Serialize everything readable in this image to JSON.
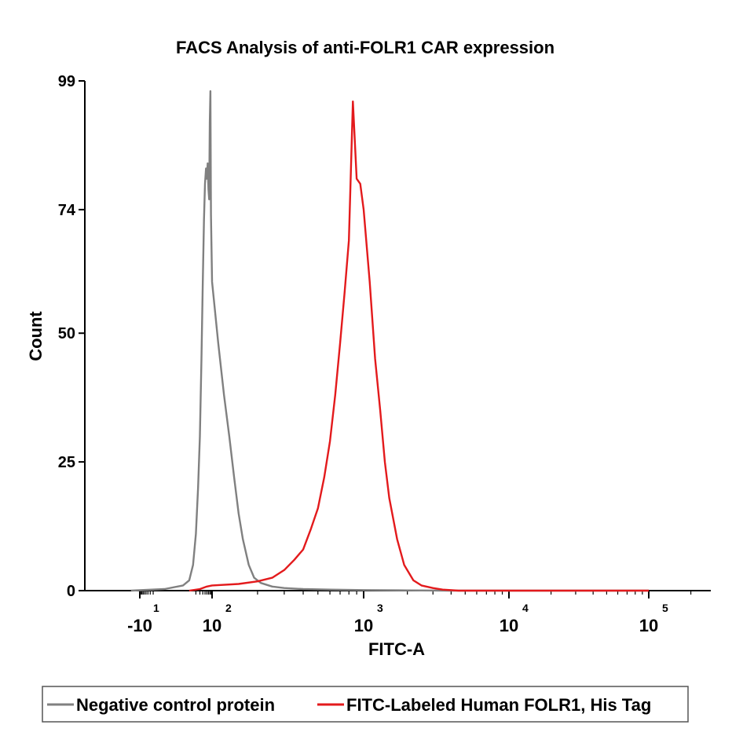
{
  "chart_data": {
    "type": "line",
    "title": "FACS Analysis of anti-FOLR1 CAR expression",
    "xlabel": "FITC-A",
    "ylabel": "Count",
    "xscale": "log (biexponential)",
    "ylim": [
      0,
      99
    ],
    "yticks": [
      {
        "value": 0,
        "label": "0"
      },
      {
        "value": 25,
        "label": "25"
      },
      {
        "value": 50,
        "label": "50"
      },
      {
        "value": 74,
        "label": "74"
      },
      {
        "value": 99,
        "label": "99"
      }
    ],
    "xticks": [
      {
        "value": 10,
        "sign": "-",
        "base": "10",
        "exp": "1"
      },
      {
        "value": 100,
        "sign": "",
        "base": "10",
        "exp": "2"
      },
      {
        "value": 1000,
        "sign": "",
        "base": "10",
        "exp": "3"
      },
      {
        "value": 10000,
        "sign": "",
        "base": "10",
        "exp": "4"
      },
      {
        "value": 100000,
        "sign": "",
        "base": "10",
        "exp": "5"
      }
    ],
    "legend_position": "bottom",
    "grid": false,
    "series": [
      {
        "name": "Negative control protein",
        "color": "#808080",
        "points": [
          [
            -25,
            0
          ],
          [
            0,
            0.3
          ],
          [
            5,
            1
          ],
          [
            10,
            2
          ],
          [
            15,
            5
          ],
          [
            20,
            11
          ],
          [
            25,
            20
          ],
          [
            30,
            30
          ],
          [
            35,
            45
          ],
          [
            40,
            60
          ],
          [
            45,
            72
          ],
          [
            50,
            79
          ],
          [
            55,
            82
          ],
          [
            60,
            80
          ],
          [
            65,
            83
          ],
          [
            70,
            78
          ],
          [
            75,
            76
          ],
          [
            80,
            91
          ],
          [
            85,
            97
          ],
          [
            90,
            73
          ],
          [
            100,
            60
          ],
          [
            110,
            48
          ],
          [
            120,
            38
          ],
          [
            130,
            30
          ],
          [
            140,
            22
          ],
          [
            150,
            15
          ],
          [
            160,
            10
          ],
          [
            175,
            5
          ],
          [
            190,
            2.5
          ],
          [
            210,
            1.5
          ],
          [
            250,
            0.8
          ],
          [
            300,
            0.5
          ],
          [
            400,
            0.3
          ],
          [
            600,
            0.2
          ],
          [
            1000,
            0.1
          ],
          [
            2000,
            0.05
          ],
          [
            4000,
            0
          ],
          [
            100000,
            0
          ]
        ]
      },
      {
        "name": "FITC-Labeled Human FOLR1, His Tag",
        "color": "#e31a1c",
        "points": [
          [
            10,
            0
          ],
          [
            30,
            0.3
          ],
          [
            60,
            0.8
          ],
          [
            100,
            1
          ],
          [
            150,
            1.3
          ],
          [
            200,
            1.8
          ],
          [
            250,
            2.5
          ],
          [
            300,
            4
          ],
          [
            350,
            6
          ],
          [
            400,
            8
          ],
          [
            450,
            12
          ],
          [
            500,
            16
          ],
          [
            550,
            22
          ],
          [
            600,
            29
          ],
          [
            650,
            38
          ],
          [
            700,
            48
          ],
          [
            750,
            58
          ],
          [
            800,
            68
          ],
          [
            850,
            95
          ],
          [
            900,
            80
          ],
          [
            950,
            79
          ],
          [
            1000,
            74
          ],
          [
            1100,
            60
          ],
          [
            1200,
            45
          ],
          [
            1300,
            35
          ],
          [
            1400,
            25
          ],
          [
            1500,
            18
          ],
          [
            1700,
            10
          ],
          [
            1900,
            5
          ],
          [
            2200,
            2
          ],
          [
            2500,
            1
          ],
          [
            3000,
            0.5
          ],
          [
            3500,
            0.2
          ],
          [
            4500,
            0
          ],
          [
            100000,
            0
          ]
        ]
      }
    ]
  }
}
